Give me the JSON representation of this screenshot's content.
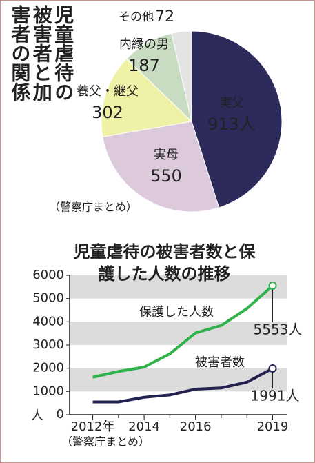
{
  "chart_data": [
    {
      "type": "pie",
      "title": "児童虐待の被害者と加害者の関係",
      "source": "（警察庁まとめ）",
      "categories": [
        "実父",
        "実母",
        "養父・継父",
        "内縁の男",
        "その他"
      ],
      "values": [
        913,
        550,
        302,
        187,
        72
      ],
      "value_labels": [
        "913人",
        "550",
        "302",
        "187",
        "72"
      ],
      "colors": [
        "#2b2a5a",
        "#dccadc",
        "#eef1a6",
        "#c8dcc2",
        "#e3e3e3"
      ]
    },
    {
      "type": "line",
      "title": "児童虐待の被害者数と保護した人数の推移",
      "source": "（警察庁まとめ）",
      "x": [
        2012,
        2013,
        2014,
        2015,
        2016,
        2017,
        2018,
        2019
      ],
      "series": [
        {
          "name": "保護した人数",
          "color": "#2fb24a",
          "values": [
            1611,
            1860,
            2050,
            2620,
            3520,
            3840,
            4570,
            5553
          ],
          "value_labels": [
            null,
            null,
            null,
            null,
            null,
            null,
            null,
            "5553人"
          ]
        },
        {
          "name": "被害者数",
          "color": "#23214f",
          "values": [
            550,
            550,
            750,
            850,
            1100,
            1150,
            1400,
            1991
          ],
          "value_labels": [
            null,
            null,
            null,
            null,
            null,
            null,
            null,
            "1991人"
          ]
        }
      ],
      "xlim": [
        2011.1,
        2019.55
      ],
      "xticks": [
        {
          "value": 2012,
          "label": "2012年"
        },
        2014,
        2016,
        2019
      ],
      "ylim": [
        0,
        6000
      ],
      "yticks": [
        0,
        1000,
        2000,
        3000,
        4000,
        5000,
        6000
      ],
      "y_unit": "人",
      "bands": true
    }
  ]
}
